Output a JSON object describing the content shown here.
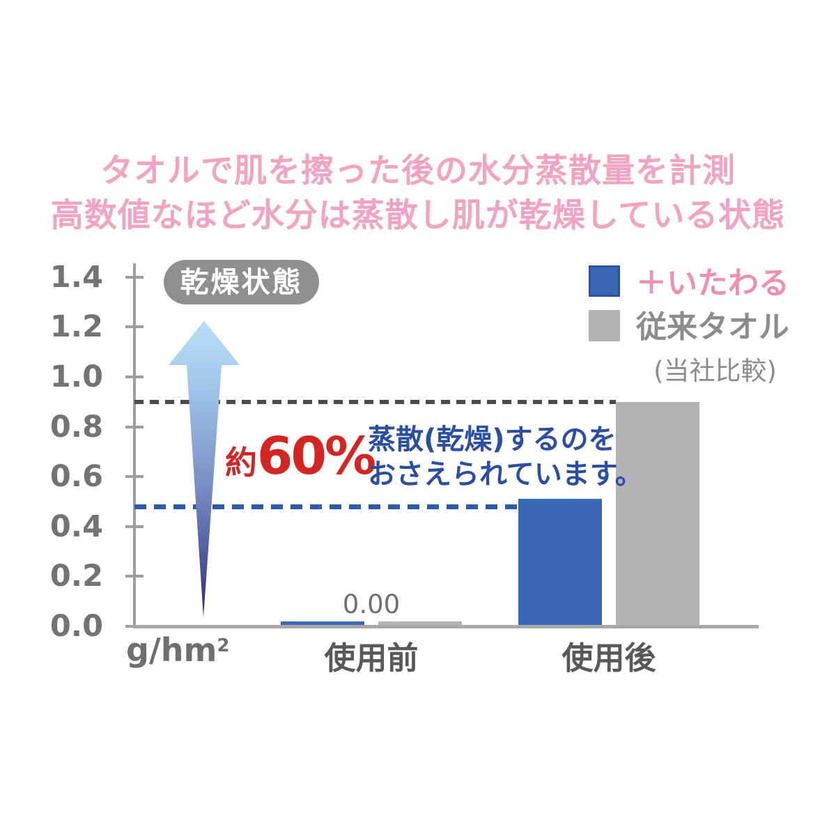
{
  "title": {
    "line1": "タオルで肌を擦った後の水分蒸散量を計測",
    "line2": "高数値なほど水分は蒸散し肌が乾燥している状態"
  },
  "annotations": {
    "badge": "乾燥状態",
    "approx_prefix": "約",
    "percent_value": "60%",
    "caption_line1": "蒸散(乾燥)するのを",
    "caption_line2": "おさえられています。"
  },
  "chart_data": {
    "type": "bar",
    "categories": [
      "使用前",
      "使用後"
    ],
    "series": [
      {
        "name": "＋いたわる",
        "values": [
          0.0,
          0.51
        ],
        "color": "#3a68b4"
      },
      {
        "name": "従来タオル",
        "values": [
          0.0,
          0.9
        ],
        "color": "#b3b3b6"
      }
    ],
    "value_label": {
      "text": "0.00",
      "group": 0
    },
    "unit_base": "g/hm",
    "unit_sup": "2",
    "ylim": [
      0,
      1.4
    ],
    "yticks": [
      0.0,
      0.2,
      0.4,
      0.6,
      0.8,
      1.0,
      1.2,
      1.4
    ],
    "ytick_labels": [
      "0.0",
      "0.2",
      "0.4",
      "0.6",
      "0.8",
      "1.0",
      "1.2",
      "1.4"
    ],
    "grid": false,
    "reference_lines": [
      {
        "value": 0.9,
        "series_index": 1,
        "color": "#4a4a52",
        "thickness": 6,
        "dash": 13,
        "gap": 9
      },
      {
        "value": 0.48,
        "series_index": 0,
        "color": "#2e5cac",
        "thickness": 7,
        "dash": 17,
        "gap": 11
      }
    ],
    "legend": [
      {
        "label": "＋いたわる",
        "swatch_color": "#3a68b4",
        "swatch_border": "#2a55a4",
        "text_color": "#ee8fb2"
      },
      {
        "label": "従来タオル",
        "swatch_color": "#b3b3b6",
        "swatch_border": "#b3b3b6",
        "text_color": "#8c8c8c"
      }
    ],
    "legend_note": "(当社比較)",
    "legend_position": "top-right"
  },
  "colors": {
    "title_pink": "#f2a3c1",
    "annotation_red": "#d42522",
    "caption_blue": "#2a4fa2",
    "axis_gray": "#9e9e9e",
    "arrow_top": "#b5ddf6",
    "arrow_mid": "#7a8fc5",
    "arrow_bottom": "#2c2e7c"
  }
}
